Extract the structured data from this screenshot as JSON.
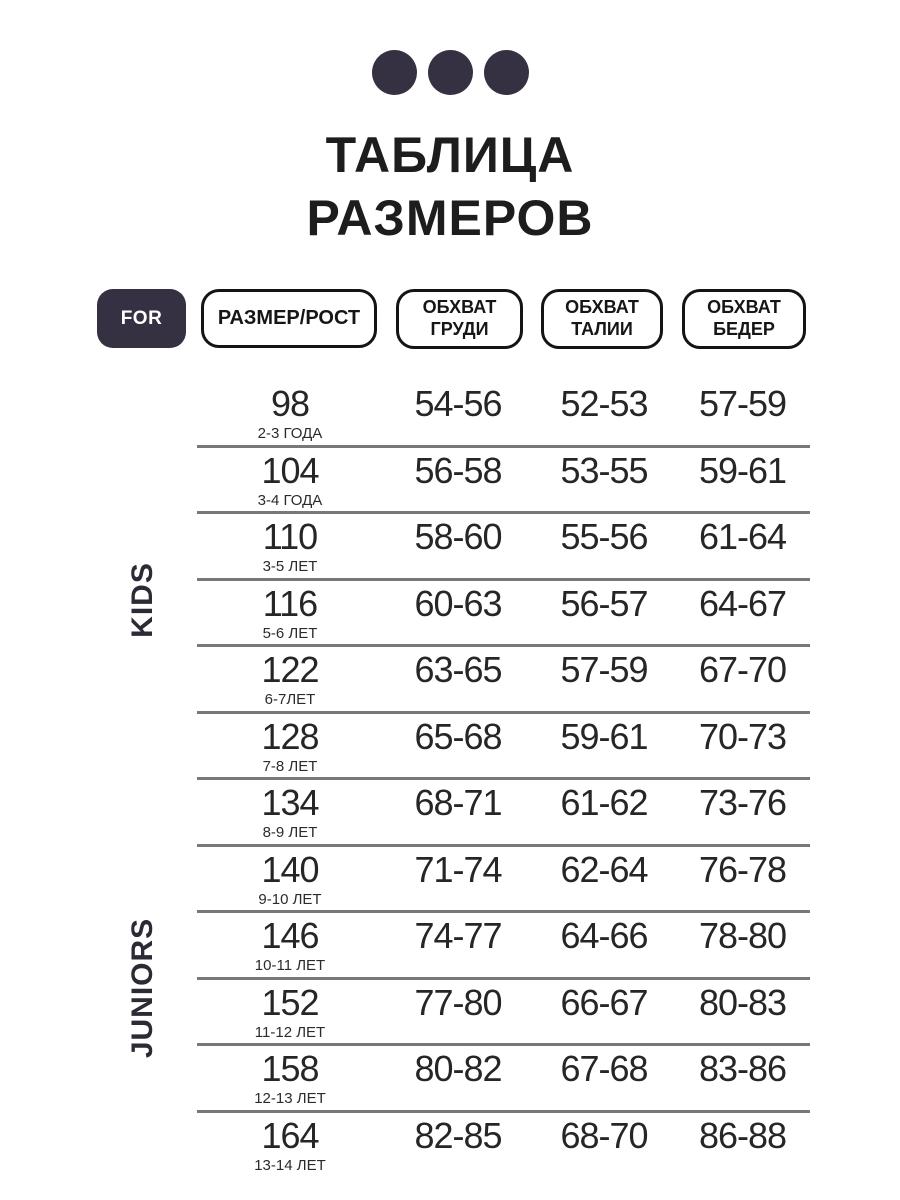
{
  "title": {
    "line1": "ТАБЛИЦА",
    "line2": "РАЗМЕРОВ"
  },
  "header": {
    "for_label": "FOR",
    "size_label": "РАЗМЕР/РОСТ",
    "chest_line1": "ОБХВАТ",
    "chest_line2": "ГРУДИ",
    "waist_line1": "ОБХВАТ",
    "waist_line2": "ТАЛИИ",
    "hips_line1": "ОБХВАТ",
    "hips_line2": "БЕДЕР"
  },
  "groups": {
    "kids": "KIDS",
    "juniors": "JUNIORS"
  },
  "table": {
    "rows": [
      {
        "size": "98",
        "age": "2-3 ГОДА",
        "chest": "54-56",
        "waist": "52-53",
        "hips": "57-59"
      },
      {
        "size": "104",
        "age": "3-4 ГОДА",
        "chest": "56-58",
        "waist": "53-55",
        "hips": "59-61"
      },
      {
        "size": "110",
        "age": "3-5 ЛЕТ",
        "chest": "58-60",
        "waist": "55-56",
        "hips": "61-64"
      },
      {
        "size": "116",
        "age": "5-6 ЛЕТ",
        "chest": "60-63",
        "waist": "56-57",
        "hips": "64-67"
      },
      {
        "size": "122",
        "age": "6-7ЛЕТ",
        "chest": "63-65",
        "waist": "57-59",
        "hips": "67-70"
      },
      {
        "size": "128",
        "age": "7-8 ЛЕТ",
        "chest": "65-68",
        "waist": "59-61",
        "hips": "70-73"
      },
      {
        "size": "134",
        "age": "8-9 ЛЕТ",
        "chest": "68-71",
        "waist": "61-62",
        "hips": "73-76"
      },
      {
        "size": "140",
        "age": "9-10 ЛЕТ",
        "chest": "71-74",
        "waist": "62-64",
        "hips": "76-78"
      },
      {
        "size": "146",
        "age": "10-11 ЛЕТ",
        "chest": "74-77",
        "waist": "64-66",
        "hips": "78-80"
      },
      {
        "size": "152",
        "age": "11-12 ЛЕТ",
        "chest": "77-80",
        "waist": "66-67",
        "hips": "80-83"
      },
      {
        "size": "158",
        "age": "12-13 ЛЕТ",
        "chest": "80-82",
        "waist": "67-68",
        "hips": "83-86"
      },
      {
        "size": "164",
        "age": "13-14 ЛЕТ",
        "chest": "82-85",
        "waist": "68-70",
        "hips": "86-88"
      }
    ]
  },
  "colors": {
    "accent_dark": "#363043",
    "divider": "#787878",
    "text": "#262626",
    "border": "#141414"
  }
}
